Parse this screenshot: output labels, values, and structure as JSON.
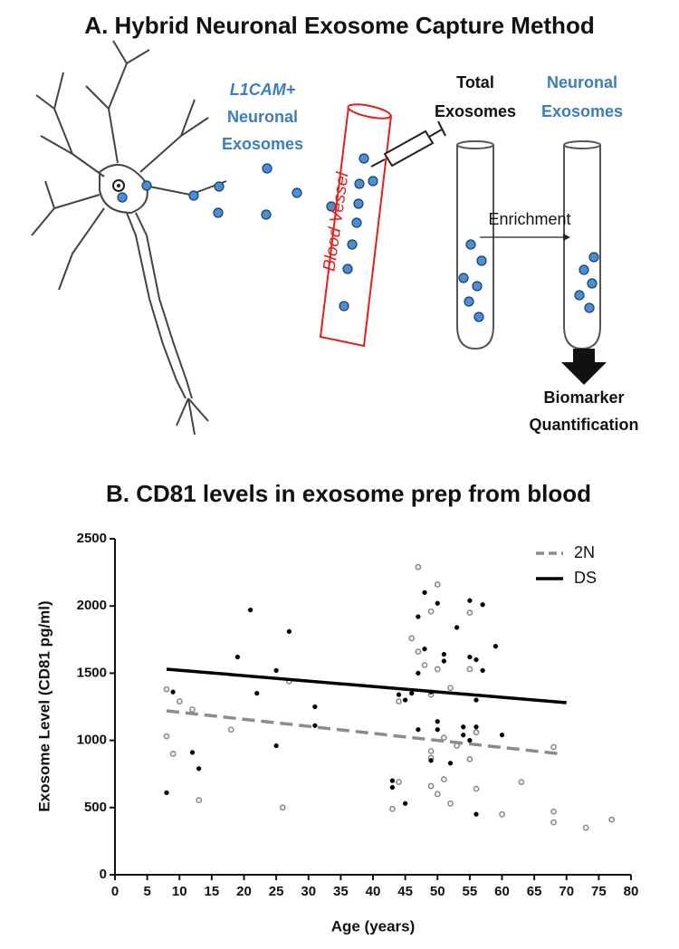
{
  "diagram": {
    "title": "A. Hybrid Neuronal Exosome Capture Method",
    "source_label": [
      "L1CAM+",
      "Neuronal",
      "Exosomes"
    ],
    "vessel_label": "Blood Vessel",
    "tube1_label": [
      "Total",
      "Exosomes"
    ],
    "tube2_label": [
      "Neuronal",
      "Exosomes"
    ],
    "arrow_label": "Enrichment",
    "output_label": [
      "Biomarker",
      "Quantification"
    ]
  },
  "chart_data": {
    "type": "scatter",
    "title": "B. CD81 levels in exosome prep from blood",
    "x_label": "Age (years)",
    "y_label": "Exosome  Level (CD81 pg/ml)",
    "xlim": [
      0,
      80
    ],
    "ylim": [
      0,
      2500
    ],
    "xticks": [
      0,
      5,
      10,
      15,
      20,
      25,
      30,
      35,
      40,
      45,
      50,
      55,
      60,
      65,
      70,
      75,
      80
    ],
    "yticks": [
      0,
      500,
      1000,
      1500,
      2000,
      2500
    ],
    "legend": "top-right",
    "series": [
      {
        "name": "2N",
        "color": "#8c8c8c",
        "marker": "open",
        "line_style": "dashed",
        "x": [
          8,
          8,
          9,
          10,
          12,
          13,
          18,
          26,
          27,
          43,
          44,
          44,
          46,
          47,
          47,
          48,
          49,
          49,
          49,
          49,
          49,
          50,
          50,
          50,
          51,
          51,
          52,
          52,
          53,
          55,
          55,
          55,
          56,
          56,
          60,
          63,
          68,
          68,
          68,
          73,
          77
        ],
        "values": [
          1380,
          1030,
          900,
          1290,
          1230,
          555,
          1080,
          500,
          1440,
          490,
          1290,
          690,
          1760,
          2290,
          1660,
          1560,
          1960,
          1340,
          920,
          870,
          660,
          2160,
          1530,
          600,
          1020,
          710,
          1390,
          530,
          960,
          1950,
          1530,
          860,
          1060,
          640,
          450,
          690,
          950,
          470,
          390,
          350,
          410
        ],
        "fit": {
          "x": [
            8,
            69
          ],
          "values": [
            1220,
            900
          ]
        }
      },
      {
        "name": "DS",
        "color": "#000000",
        "marker": "filled",
        "line_style": "solid",
        "x": [
          8,
          9,
          12,
          13,
          19,
          21,
          22,
          25,
          25,
          27,
          31,
          31,
          43,
          43,
          44,
          45,
          45,
          46,
          47,
          47,
          47,
          48,
          48,
          49,
          49,
          50,
          50,
          50,
          51,
          51,
          52,
          53,
          54,
          54,
          55,
          55,
          55,
          56,
          56,
          56,
          56,
          57,
          57,
          59,
          60
        ],
        "values": [
          610,
          1360,
          910,
          790,
          1620,
          1970,
          1350,
          1520,
          960,
          1810,
          1250,
          1110,
          700,
          650,
          1340,
          1300,
          530,
          1350,
          1920,
          1500,
          1080,
          2100,
          1680,
          1360,
          850,
          2020,
          1140,
          1080,
          1640,
          1590,
          830,
          1840,
          1100,
          1040,
          2040,
          1620,
          1000,
          1600,
          1300,
          1100,
          450,
          2010,
          1520,
          1700,
          1040
        ],
        "fit": {
          "x": [
            8,
            70
          ],
          "values": [
            1530,
            1280
          ]
        }
      }
    ]
  }
}
